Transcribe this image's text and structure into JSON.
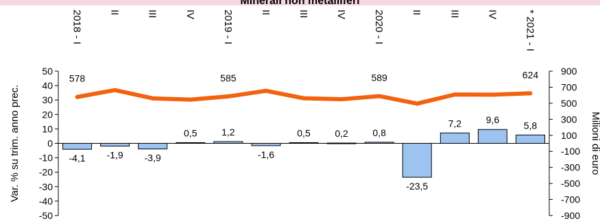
{
  "chart_data": {
    "type": "bar",
    "title": "Minerali non metalliferi",
    "categories": [
      "2018 - I",
      "II",
      "III",
      "IV",
      "2019 - I",
      "II",
      "III",
      "IV",
      "2020 - I",
      "II",
      "III",
      "IV",
      "* 2021 - I"
    ],
    "series": [
      {
        "type": "bar",
        "axis": "left",
        "values": [
          -4.1,
          -1.9,
          -3.9,
          0.5,
          1.2,
          -1.6,
          0.5,
          0.2,
          0.8,
          -23.5,
          7.2,
          9.6,
          5.8
        ],
        "labels": [
          "-4,1",
          "-1,9",
          "-3,9",
          "0,5",
          "1,2",
          "-1,6",
          "0,5",
          "0,2",
          "0,8",
          "-23,5",
          "7,2",
          "9,6",
          "5,8"
        ],
        "color": "#9dc3f0"
      },
      {
        "type": "line",
        "axis": "right",
        "values": [
          578,
          664,
          561,
          545,
          585,
          655,
          562,
          550,
          589,
          495,
          609,
          607,
          624
        ],
        "labels": [
          "578",
          "",
          "",
          "",
          "585",
          "",
          "",
          "",
          "589",
          "",
          "",
          "",
          "624"
        ],
        "color": "#f2620f"
      }
    ],
    "ylabel": "Var. % su trim. anno prec.",
    "ylim": [
      -50,
      50
    ],
    "yticks": [
      "50",
      "40",
      "30",
      "20",
      "10",
      "0",
      "-10",
      "-20",
      "-30",
      "-40",
      "-50"
    ],
    "y2label": "Milioni di euro",
    "y2lim": [
      -900,
      900
    ],
    "y2ticks": [
      "900",
      "700",
      "500",
      "300",
      "100",
      "-100",
      "-300",
      "-500",
      "-700",
      "-900"
    ],
    "grid": false
  }
}
